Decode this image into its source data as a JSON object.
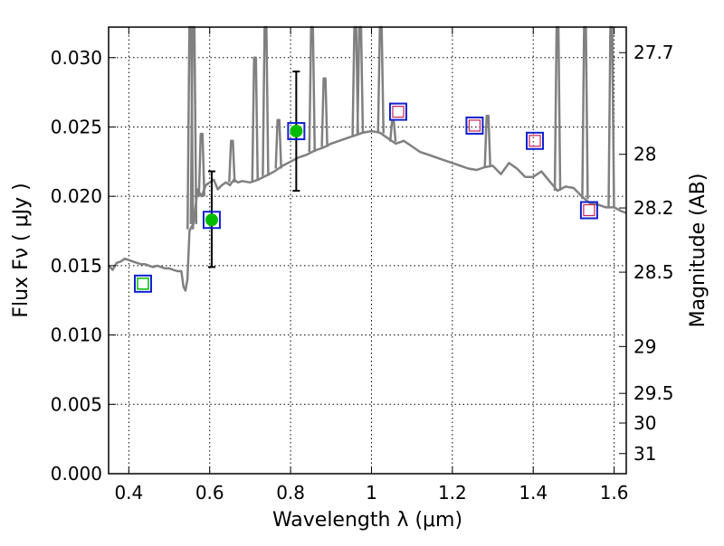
{
  "chart_data": {
    "type": "scatter",
    "xlabel": "Wavelength  λ (μm)",
    "ylabel": "Flux  Fν  ( μJy )",
    "ylabel_right": "Magnitude (AB)",
    "xlim": [
      0.35,
      1.63
    ],
    "ylim": [
      0.0,
      0.0322
    ],
    "x_ticks": [
      0.4,
      0.6,
      0.8,
      1.0,
      1.2,
      1.4,
      1.6
    ],
    "x_tick_labels": [
      "0.4",
      "0.6",
      "0.8",
      "1",
      "1.2",
      "1.4",
      "1.6"
    ],
    "y_ticks": [
      0.0,
      0.005,
      0.01,
      0.015,
      0.02,
      0.025,
      0.03
    ],
    "y_tick_labels": [
      "0.000",
      "0.005",
      "0.010",
      "0.015",
      "0.020",
      "0.025",
      "0.030"
    ],
    "right_ticks": [
      {
        "label": "27.7",
        "flux": 0.03036
      },
      {
        "label": "28",
        "flux": 0.02303
      },
      {
        "label": "28.2",
        "flux": 0.01916
      },
      {
        "label": "28.5",
        "flux": 0.01453
      },
      {
        "label": "29",
        "flux": 0.00917
      },
      {
        "label": "29.5",
        "flux": 0.00579
      },
      {
        "label": "30",
        "flux": 0.00365
      },
      {
        "label": "31",
        "flux": 0.00145
      }
    ],
    "grid": true,
    "colors": {
      "spectrum": "#808080",
      "observed_marker": "#00bb00",
      "model_box": "#1020d0",
      "model_inner": "#cc2255",
      "errorbar": "#000000"
    },
    "spectrum": {
      "x": [
        0.35,
        0.36,
        0.37,
        0.38,
        0.39,
        0.4,
        0.41,
        0.42,
        0.43,
        0.44,
        0.45,
        0.46,
        0.47,
        0.48,
        0.49,
        0.5,
        0.51,
        0.52,
        0.53,
        0.535,
        0.54,
        0.545,
        0.55,
        0.555,
        0.56,
        0.57,
        0.58,
        0.59,
        0.6,
        0.61,
        0.62,
        0.63,
        0.64,
        0.65,
        0.66,
        0.67,
        0.68,
        0.7,
        0.72,
        0.74,
        0.76,
        0.78,
        0.8,
        0.82,
        0.84,
        0.86,
        0.88,
        0.9,
        0.92,
        0.94,
        0.96,
        0.98,
        1.0,
        1.02,
        1.04,
        1.06,
        1.08,
        1.1,
        1.12,
        1.14,
        1.16,
        1.18,
        1.2,
        1.22,
        1.24,
        1.26,
        1.28,
        1.3,
        1.32,
        1.34,
        1.36,
        1.38,
        1.4,
        1.42,
        1.44,
        1.46,
        1.48,
        1.5,
        1.52,
        1.54,
        1.56,
        1.58,
        1.6,
        1.62,
        1.63
      ],
      "y": [
        0.015,
        0.0147,
        0.0152,
        0.0153,
        0.0155,
        0.0154,
        0.0153,
        0.0152,
        0.0151,
        0.0151,
        0.015,
        0.0149,
        0.015,
        0.0149,
        0.0148,
        0.0148,
        0.0147,
        0.0146,
        0.0146,
        0.0135,
        0.0132,
        0.014,
        0.0175,
        0.0178,
        0.018,
        0.0205,
        0.02,
        0.0208,
        0.021,
        0.0212,
        0.0205,
        0.0208,
        0.021,
        0.0208,
        0.0212,
        0.021,
        0.0211,
        0.021,
        0.0212,
        0.0215,
        0.0218,
        0.0222,
        0.0225,
        0.0228,
        0.023,
        0.0233,
        0.0235,
        0.0238,
        0.024,
        0.0242,
        0.0244,
        0.0246,
        0.0247,
        0.0246,
        0.0242,
        0.0238,
        0.024,
        0.0236,
        0.0232,
        0.023,
        0.0228,
        0.0226,
        0.0224,
        0.0222,
        0.022,
        0.0219,
        0.0221,
        0.0222,
        0.0216,
        0.0224,
        0.022,
        0.0214,
        0.0214,
        0.0218,
        0.0211,
        0.0204,
        0.0207,
        0.0206,
        0.02,
        0.0195,
        0.0194,
        0.0192,
        0.0192,
        0.0189,
        0.0188
      ]
    },
    "emission_lines": [
      {
        "x": 0.552,
        "peak": 0.0322
      },
      {
        "x": 0.56,
        "peak": 0.0322
      },
      {
        "x": 0.58,
        "peak": 0.0245
      },
      {
        "x": 0.655,
        "peak": 0.024
      },
      {
        "x": 0.712,
        "peak": 0.03
      },
      {
        "x": 0.738,
        "peak": 0.0322
      },
      {
        "x": 0.77,
        "peak": 0.0255
      },
      {
        "x": 0.853,
        "peak": 0.0322
      },
      {
        "x": 0.884,
        "peak": 0.0285
      },
      {
        "x": 0.96,
        "peak": 0.0322
      },
      {
        "x": 0.972,
        "peak": 0.0322
      },
      {
        "x": 1.023,
        "peak": 0.0322
      },
      {
        "x": 1.053,
        "peak": 0.0254
      },
      {
        "x": 1.287,
        "peak": 0.0258
      },
      {
        "x": 1.46,
        "peak": 0.0322
      },
      {
        "x": 1.528,
        "peak": 0.0322
      },
      {
        "x": 1.593,
        "peak": 0.0322
      }
    ],
    "observed": [
      {
        "x": 0.605,
        "y": 0.0183,
        "err_low": 0.0149,
        "err_high": 0.0218
      },
      {
        "x": 0.814,
        "y": 0.0247,
        "err_low": 0.0204,
        "err_high": 0.029
      }
    ],
    "model_points": [
      {
        "x": 0.435,
        "y": 0.0137,
        "inner": "green"
      },
      {
        "x": 0.605,
        "y": 0.0183,
        "inner": "none"
      },
      {
        "x": 0.814,
        "y": 0.0247,
        "inner": "none"
      },
      {
        "x": 1.066,
        "y": 0.0261,
        "inner": "red"
      },
      {
        "x": 1.255,
        "y": 0.0251,
        "inner": "red"
      },
      {
        "x": 1.404,
        "y": 0.024,
        "inner": "red"
      },
      {
        "x": 1.538,
        "y": 0.019,
        "inner": "red"
      }
    ]
  }
}
